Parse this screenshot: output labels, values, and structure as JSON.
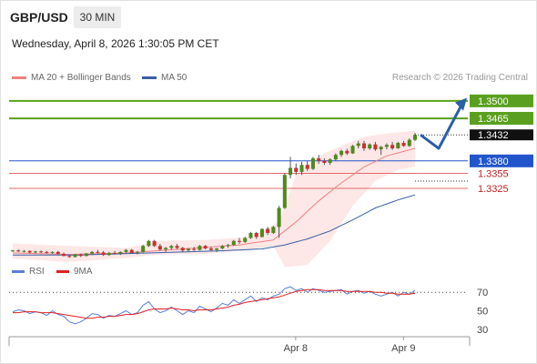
{
  "header": {
    "pair": "GBP/USD",
    "timeframe": "30 MIN",
    "datetime": "Wednesday, April 8, 2026 1:30:05 PM CET"
  },
  "legend": {
    "ma20": {
      "label": "MA 20 + Bollinger Bands",
      "color": "#f08080"
    },
    "ma50": {
      "label": "MA 50",
      "color": "#3a5fa8"
    }
  },
  "credit": "Research © 2026 Trading Central",
  "rsi_legend": {
    "rsi": {
      "label": "RSI",
      "color": "#5b7fd8"
    },
    "ma9": {
      "label": "9MA",
      "color": "#e02020"
    }
  },
  "chart_data": [
    {
      "type": "candlestick",
      "title": "",
      "ylim": [
        1.3185,
        1.3527
      ],
      "current_price": 1.3432,
      "levels": [
        {
          "value": 1.35,
          "label": "1.3500",
          "kind": "resistance",
          "color": "#5aa01e"
        },
        {
          "value": 1.3465,
          "label": "1.3465",
          "kind": "resistance",
          "color": "#5aa01e"
        },
        {
          "value": 1.338,
          "label": "1.3380",
          "kind": "pivot",
          "color": "#2255cc"
        },
        {
          "value": 1.3355,
          "label": "1.3355",
          "kind": "support",
          "color": "#e86a6a"
        },
        {
          "value": 1.3325,
          "label": "1.3325",
          "kind": "support",
          "color": "#e86a6a"
        }
      ],
      "forecast_path": [
        1.3432,
        1.3405,
        1.3495
      ],
      "candles": [
        [
          1.32,
          1.3202,
          1.3198,
          1.3201
        ],
        [
          1.3201,
          1.3203,
          1.3198,
          1.3199
        ],
        [
          1.3199,
          1.3202,
          1.3197,
          1.32
        ],
        [
          1.32,
          1.3201,
          1.3195,
          1.3197
        ],
        [
          1.3197,
          1.32,
          1.3195,
          1.3199
        ],
        [
          1.3199,
          1.3201,
          1.3196,
          1.3198
        ],
        [
          1.3198,
          1.32,
          1.3195,
          1.3196
        ],
        [
          1.3196,
          1.3199,
          1.3194,
          1.3198
        ],
        [
          1.3198,
          1.32,
          1.3193,
          1.3194
        ],
        [
          1.3194,
          1.3197,
          1.3189,
          1.319
        ],
        [
          1.319,
          1.3193,
          1.3186,
          1.3188
        ],
        [
          1.3188,
          1.3194,
          1.3187,
          1.3193
        ],
        [
          1.3193,
          1.3195,
          1.3188,
          1.319
        ],
        [
          1.319,
          1.3196,
          1.3189,
          1.3195
        ],
        [
          1.3195,
          1.32,
          1.3193,
          1.3198
        ],
        [
          1.3198,
          1.3202,
          1.3195,
          1.3197
        ],
        [
          1.3197,
          1.32,
          1.319,
          1.3192
        ],
        [
          1.3192,
          1.3198,
          1.319,
          1.3196
        ],
        [
          1.3196,
          1.32,
          1.3193,
          1.3195
        ],
        [
          1.3195,
          1.3199,
          1.3192,
          1.3198
        ],
        [
          1.3198,
          1.3204,
          1.3196,
          1.3202
        ],
        [
          1.3202,
          1.3204,
          1.3194,
          1.3196
        ],
        [
          1.3196,
          1.32,
          1.3193,
          1.3198
        ],
        [
          1.3198,
          1.3212,
          1.3197,
          1.321
        ],
        [
          1.321,
          1.3222,
          1.3208,
          1.322
        ],
        [
          1.322,
          1.3222,
          1.3208,
          1.321
        ],
        [
          1.321,
          1.3214,
          1.32,
          1.3203
        ],
        [
          1.3203,
          1.3208,
          1.3198,
          1.3206
        ],
        [
          1.3206,
          1.3212,
          1.3202,
          1.321
        ],
        [
          1.321,
          1.3214,
          1.3204,
          1.3206
        ],
        [
          1.3206,
          1.3208,
          1.3198,
          1.3201
        ],
        [
          1.3201,
          1.3206,
          1.3198,
          1.3204
        ],
        [
          1.3204,
          1.3208,
          1.32,
          1.3202
        ],
        [
          1.3202,
          1.3212,
          1.3201,
          1.321
        ],
        [
          1.321,
          1.3212,
          1.3203,
          1.3205
        ],
        [
          1.3205,
          1.3208,
          1.3199,
          1.3202
        ],
        [
          1.3202,
          1.3206,
          1.3198,
          1.3205
        ],
        [
          1.3205,
          1.3212,
          1.3203,
          1.321
        ],
        [
          1.321,
          1.3214,
          1.3206,
          1.3212
        ],
        [
          1.3212,
          1.3222,
          1.321,
          1.322
        ],
        [
          1.322,
          1.3226,
          1.3214,
          1.3218
        ],
        [
          1.3218,
          1.3228,
          1.3216,
          1.3226
        ],
        [
          1.3226,
          1.3238,
          1.3224,
          1.3236
        ],
        [
          1.3236,
          1.3238,
          1.3224,
          1.3228
        ],
        [
          1.3228,
          1.3245,
          1.3227,
          1.3244
        ],
        [
          1.3244,
          1.3248,
          1.3232,
          1.3236
        ],
        [
          1.3236,
          1.325,
          1.3234,
          1.3248
        ],
        [
          1.3248,
          1.329,
          1.3226,
          1.3286
        ],
        [
          1.3286,
          1.3355,
          1.3284,
          1.3352
        ],
        [
          1.3352,
          1.3388,
          1.3345,
          1.3366
        ],
        [
          1.3366,
          1.3375,
          1.3352,
          1.3358
        ],
        [
          1.3358,
          1.3378,
          1.3352,
          1.3372
        ],
        [
          1.3372,
          1.338,
          1.336,
          1.3364
        ],
        [
          1.3364,
          1.3388,
          1.3362,
          1.3385
        ],
        [
          1.3385,
          1.3392,
          1.3374,
          1.338
        ],
        [
          1.338,
          1.3385,
          1.3372,
          1.3376
        ],
        [
          1.3376,
          1.3385,
          1.3372,
          1.3383
        ],
        [
          1.3383,
          1.3395,
          1.338,
          1.3392
        ],
        [
          1.3392,
          1.3402,
          1.3388,
          1.34
        ],
        [
          1.34,
          1.3404,
          1.3392,
          1.3395
        ],
        [
          1.3395,
          1.3412,
          1.3394,
          1.341
        ],
        [
          1.341,
          1.342,
          1.3405,
          1.3415
        ],
        [
          1.3415,
          1.342,
          1.34,
          1.3405
        ],
        [
          1.3405,
          1.3415,
          1.3402,
          1.3413
        ],
        [
          1.3413,
          1.3418,
          1.34,
          1.3403
        ],
        [
          1.3403,
          1.341,
          1.3392,
          1.3408
        ],
        [
          1.3408,
          1.3415,
          1.3403,
          1.3412
        ],
        [
          1.3412,
          1.3418,
          1.3402,
          1.3405
        ],
        [
          1.3405,
          1.3418,
          1.3404,
          1.3416
        ],
        [
          1.3416,
          1.342,
          1.3408,
          1.341
        ],
        [
          1.341,
          1.3425,
          1.3408,
          1.3422
        ],
        [
          1.3422,
          1.3436,
          1.342,
          1.3432
        ]
      ],
      "ma20": [
        [
          0,
          1.3196
        ],
        [
          10,
          1.3193
        ],
        [
          20,
          1.3196
        ],
        [
          30,
          1.3204
        ],
        [
          40,
          1.3212
        ],
        [
          46,
          1.3222
        ],
        [
          50,
          1.3258
        ],
        [
          54,
          1.33
        ],
        [
          58,
          1.3336
        ],
        [
          62,
          1.3368
        ],
        [
          66,
          1.339
        ],
        [
          71,
          1.3405
        ]
      ],
      "bollinger_upper": [
        [
          0,
          1.3215
        ],
        [
          10,
          1.321
        ],
        [
          20,
          1.3206
        ],
        [
          26,
          1.322
        ],
        [
          34,
          1.3222
        ],
        [
          42,
          1.3228
        ],
        [
          47,
          1.3258
        ],
        [
          50,
          1.3352
        ],
        [
          54,
          1.339
        ],
        [
          58,
          1.341
        ],
        [
          62,
          1.3428
        ],
        [
          66,
          1.3435
        ],
        [
          71,
          1.344
        ]
      ],
      "bollinger_lower": [
        [
          0,
          1.3185
        ],
        [
          10,
          1.3178
        ],
        [
          20,
          1.3186
        ],
        [
          26,
          1.3193
        ],
        [
          34,
          1.3194
        ],
        [
          42,
          1.3202
        ],
        [
          46,
          1.321
        ],
        [
          48,
          1.3168
        ],
        [
          52,
          1.3172
        ],
        [
          56,
          1.322
        ],
        [
          60,
          1.329
        ],
        [
          64,
          1.334
        ],
        [
          68,
          1.3362
        ],
        [
          71,
          1.3368
        ]
      ],
      "ma50": [
        [
          0,
          1.3192
        ],
        [
          12,
          1.3192
        ],
        [
          24,
          1.3196
        ],
        [
          36,
          1.32
        ],
        [
          44,
          1.3204
        ],
        [
          48,
          1.3212
        ],
        [
          52,
          1.3224
        ],
        [
          56,
          1.324
        ],
        [
          60,
          1.3262
        ],
        [
          64,
          1.3286
        ],
        [
          68,
          1.3302
        ],
        [
          71,
          1.3312
        ]
      ]
    },
    {
      "type": "line",
      "title": "",
      "ylim": [
        20,
        85
      ],
      "y_ticks": [
        70,
        50,
        30
      ],
      "overbought": 70,
      "oversold": 30,
      "x_ticks": [
        {
          "index": 48,
          "label": "Apr 8"
        },
        {
          "index": 68,
          "label": "Apr 9"
        }
      ],
      "series": [
        {
          "name": "RSI",
          "values": [
            49,
            51,
            50,
            47,
            49,
            48,
            45,
            50,
            46,
            44,
            38,
            36,
            38,
            42,
            47,
            46,
            42,
            45,
            44,
            47,
            50,
            46,
            48,
            56,
            60,
            52,
            48,
            50,
            54,
            50,
            46,
            50,
            48,
            55,
            52,
            49,
            53,
            58,
            56,
            62,
            58,
            62,
            66,
            60,
            64,
            62,
            66,
            68,
            74,
            76,
            72,
            74,
            70,
            74,
            72,
            70,
            71,
            72,
            73,
            68,
            71,
            72,
            69,
            71,
            68,
            66,
            68,
            70,
            66,
            70,
            68,
            72
          ]
        },
        {
          "name": "9MA",
          "values": [
            48,
            48,
            49,
            49,
            49,
            48,
            48,
            48,
            47,
            46,
            45,
            44,
            43,
            42,
            42,
            43,
            43,
            44,
            44,
            45,
            46,
            46,
            47,
            49,
            51,
            52,
            52,
            52,
            53,
            52,
            51,
            51,
            50,
            51,
            51,
            51,
            52,
            53,
            54,
            56,
            57,
            59,
            60,
            61,
            62,
            63,
            64,
            65,
            67,
            69,
            71,
            72,
            73,
            73,
            73,
            72,
            72,
            72,
            72,
            71,
            71,
            71,
            71,
            71,
            70,
            70,
            69,
            69,
            68,
            68,
            68,
            69
          ]
        }
      ]
    }
  ]
}
